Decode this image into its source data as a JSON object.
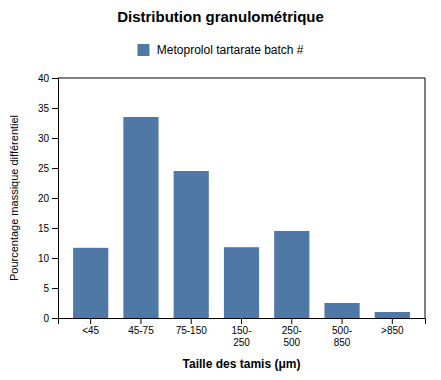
{
  "chart_data": {
    "type": "bar",
    "title": "Distribution granulométrique",
    "xlabel": "Taille des tamis (μm)",
    "ylabel": "Pourcentage massique différentiel",
    "categories": [
      "<45",
      "45-75",
      "75-150",
      "150-\n250",
      "250-\n500",
      "500-\n850",
      ">850"
    ],
    "series": [
      {
        "name": " Metoprolol tartarate batch #",
        "values": [
          11.7,
          33.5,
          24.5,
          11.8,
          14.5,
          2.5,
          1.0
        ]
      }
    ],
    "ylim": [
      0,
      40
    ],
    "yticks": [
      0,
      5,
      10,
      15,
      20,
      25,
      30,
      35,
      40
    ],
    "grid": false,
    "legend": "top"
  }
}
